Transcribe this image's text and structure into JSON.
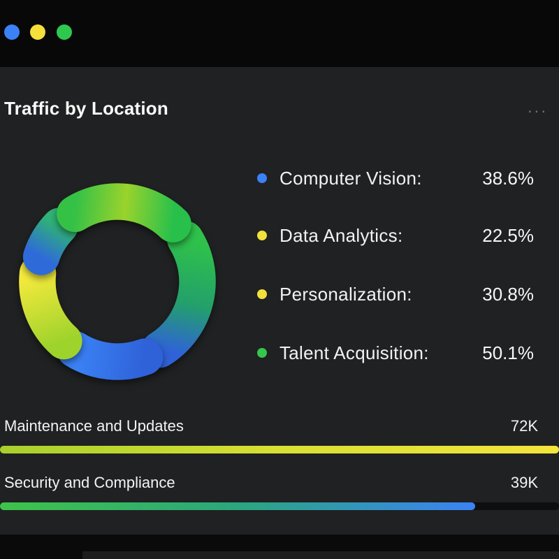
{
  "window": {
    "buttons": [
      {
        "name": "blue",
        "color": "#3b82f6"
      },
      {
        "name": "yellow",
        "color": "#f5df3a"
      },
      {
        "name": "green",
        "color": "#2fc84e"
      }
    ]
  },
  "panel": {
    "title": "Traffic by Location",
    "menu_label": "..."
  },
  "chart_data": [
    {
      "type": "pie",
      "variant": "donut",
      "title": "Traffic by Location",
      "legend_position": "right",
      "series": [
        {
          "label": "Computer Vision:",
          "value": 38.6,
          "display": "38.6%",
          "dot_color": "#3b82f6"
        },
        {
          "label": "Data Analytics:",
          "value": 22.5,
          "display": "22.5%",
          "dot_color": "#f2e13c"
        },
        {
          "label": "Personalization:",
          "value": 30.8,
          "display": "30.8%",
          "dot_color": "#f2e13c"
        },
        {
          "label": "Talent Acquisition:",
          "value": 50.1,
          "display": "50.1%",
          "dot_color": "#35c64c"
        }
      ],
      "segment_gradients": [
        {
          "name": "top",
          "colors": [
            "#35c146",
            "#9ad32c",
            "#28c04b"
          ]
        },
        {
          "name": "right",
          "colors": [
            "#2fc14b",
            "#23a06b",
            "#2f62d9"
          ]
        },
        {
          "name": "bottom",
          "colors": [
            "#2f62d9",
            "#3b82f6"
          ]
        },
        {
          "name": "left",
          "colors": [
            "#9ed32c",
            "#f4e93c"
          ]
        },
        {
          "name": "upper-left",
          "colors": [
            "#2e6bd9",
            "#2fb276"
          ]
        }
      ]
    },
    {
      "type": "bar",
      "orientation": "horizontal",
      "items": [
        {
          "label": "Maintenance and Updates",
          "value": "72K",
          "value_numeric": 72000,
          "fill_percent": 100,
          "bar_gradient": "linear-gradient(90deg,#a8d02c,#d8e033,#f2e53c)"
        },
        {
          "label": "Security and Compliance",
          "value": "39K",
          "value_numeric": 39000,
          "fill_percent": 85,
          "bar_gradient": "linear-gradient(90deg,#3ec34a,#2aa77e,#3b82f6)"
        }
      ]
    }
  ]
}
